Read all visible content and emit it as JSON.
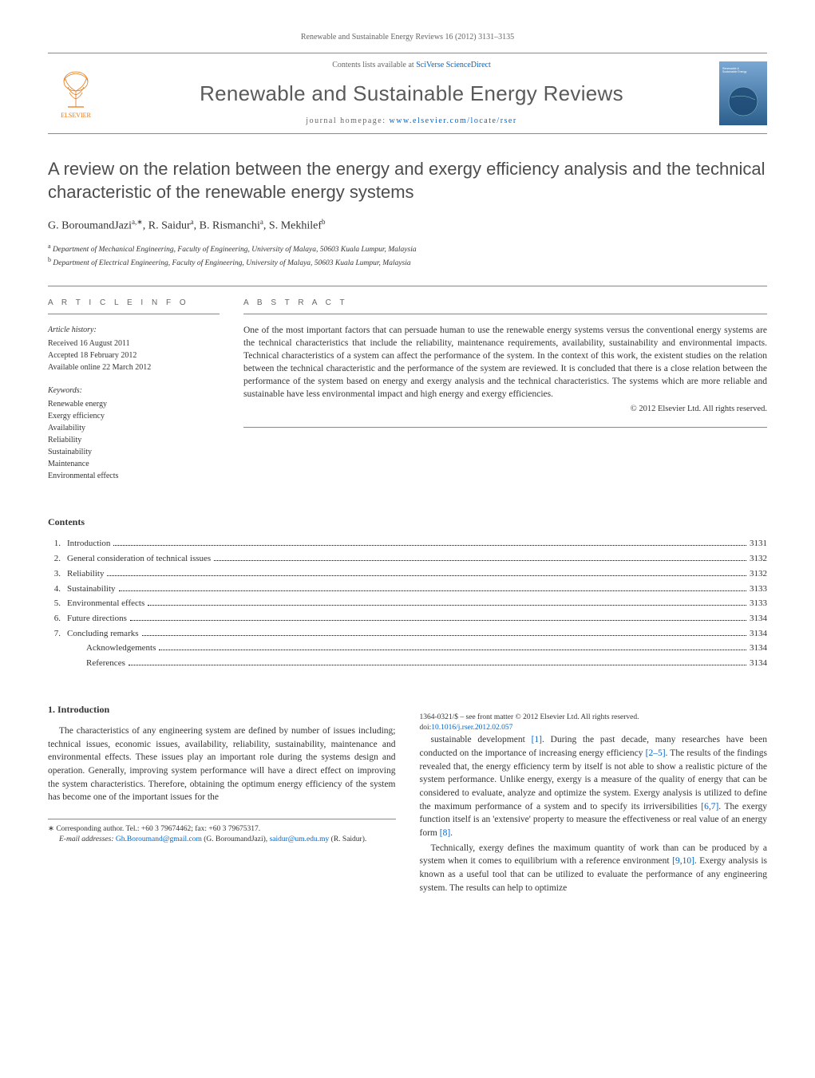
{
  "header": {
    "citation": "Renewable and Sustainable Energy Reviews 16 (2012) 3131–3135",
    "contents_available": "Contents lists available at ",
    "sciverse": "SciVerse ScienceDirect",
    "journal_name": "Renewable and Sustainable Energy Reviews",
    "homepage_label": "journal homepage: ",
    "homepage_url": "www.elsevier.com/locate/rser",
    "publisher": "ELSEVIER"
  },
  "article": {
    "title": "A review on the relation between the energy and exergy efficiency analysis and the technical characteristic of the renewable energy systems",
    "authors_html": "G. BoroumandJazi",
    "author_a_sup": "a,",
    "author_star": "∗",
    "author_sep1": ", R. Saidur",
    "author_b_sup": "a",
    "author_sep2": ", B. Rismanchi",
    "author_c_sup": "a",
    "author_sep3": ", S. Mekhilef",
    "author_d_sup": "b",
    "affil_a_sup": "a",
    "affil_a": " Department of Mechanical Engineering, Faculty of Engineering, University of Malaya, 50603 Kuala Lumpur, Malaysia",
    "affil_b_sup": "b",
    "affil_b": " Department of Electrical Engineering, Faculty of Engineering, University of Malaya, 50603 Kuala Lumpur, Malaysia"
  },
  "info": {
    "heading": "a r t i c l e   i n f o",
    "history_head": "Article history:",
    "received": "Received 16 August 2011",
    "accepted": "Accepted 18 February 2012",
    "online": "Available online 22 March 2012",
    "keywords_head": "Keywords:",
    "keywords": [
      "Renewable energy",
      "Exergy efficiency",
      "Availability",
      "Reliability",
      "Sustainability",
      "Maintenance",
      "Environmental effects"
    ]
  },
  "abstract": {
    "heading": "a b s t r a c t",
    "text": "One of the most important factors that can persuade human to use the renewable energy systems versus the conventional energy systems are the technical characteristics that include the reliability, maintenance requirements, availability, sustainability and environmental impacts. Technical characteristics of a system can affect the performance of the system. In the context of this work, the existent studies on the relation between the technical characteristic and the performance of the system are reviewed. It is concluded that there is a close relation between the performance of the system based on energy and exergy analysis and the technical characteristics. The systems which are more reliable and sustainable have less environmental impact and high energy and exergy efficiencies.",
    "copyright": "© 2012 Elsevier Ltd. All rights reserved."
  },
  "contents": {
    "title": "Contents",
    "items": [
      {
        "num": "1.",
        "label": "Introduction",
        "page": "3131"
      },
      {
        "num": "2.",
        "label": "General consideration of technical issues",
        "page": "3132"
      },
      {
        "num": "3.",
        "label": "Reliability",
        "page": "3132"
      },
      {
        "num": "4.",
        "label": "Sustainability",
        "page": "3133"
      },
      {
        "num": "5.",
        "label": "Environmental effects",
        "page": "3133"
      },
      {
        "num": "6.",
        "label": "Future directions",
        "page": "3134"
      },
      {
        "num": "7.",
        "label": "Concluding remarks",
        "page": "3134"
      },
      {
        "num": "",
        "label": "Acknowledgements",
        "page": "3134",
        "sub": true
      },
      {
        "num": "",
        "label": "References",
        "page": "3134",
        "sub": true
      }
    ]
  },
  "body": {
    "section1_heading": "1.  Introduction",
    "para1": "The characteristics of any engineering system are defined by number of issues including; technical issues, economic issues, availability, reliability, sustainability, maintenance and environmental effects. These issues play an important role during the systems design and operation. Generally, improving system performance will have a direct effect on improving the system characteristics. Therefore, obtaining the optimum energy efficiency of the system has become one of the important issues for the",
    "para2a": "sustainable development ",
    "ref1": "[1]",
    "para2b": ". During the past decade, many researches have been conducted on the importance of increasing energy efficiency ",
    "ref2": "[2–5]",
    "para2c": ". The results of the findings revealed that, the energy efficiency term by itself is not able to show a realistic picture of the system performance. Unlike energy, exergy is a measure of the quality of energy that can be considered to evaluate, analyze and optimize the system. Exergy analysis is utilized to define the maximum performance of a system and to specify its irriversibilities ",
    "ref3": "[6,7]",
    "para2d": ". The exergy function itself is an 'extensive' property to measure the effectiveness or real value of an energy form ",
    "ref4": "[8]",
    "para2e": ".",
    "para3a": "Technically, exergy defines the maximum quantity of work than can be produced by a system when it comes to equilibrium with a reference environment ",
    "ref5": "[9,10]",
    "para3b": ". Exergy analysis is known as a useful tool that can be utilized to evaluate the performance of any engineering system. The results can help to optimize"
  },
  "footnote": {
    "corr_label": "∗ Corresponding author. Tel.: +60 3 79674462; fax: +60 3 79675317.",
    "email_label": "E-mail addresses: ",
    "email1": "Gh.Boroumand@gmail.com",
    "email1_who": " (G. BoroumandJazi), ",
    "email2": "saidur@um.edu.my",
    "email2_who": " (R. Saidur)."
  },
  "footer": {
    "issn_line": "1364-0321/$ – see front matter © 2012 Elsevier Ltd. All rights reserved.",
    "doi_label": "doi:",
    "doi": "10.1016/j.rser.2012.02.057"
  },
  "style": {
    "link_color": "#0066cc",
    "text_color": "#333333",
    "rule_color": "#888888",
    "elsevier_orange": "#e67817",
    "cover_gradient_top": "#7aa8d4",
    "cover_gradient_bottom": "#2c5f8d"
  }
}
